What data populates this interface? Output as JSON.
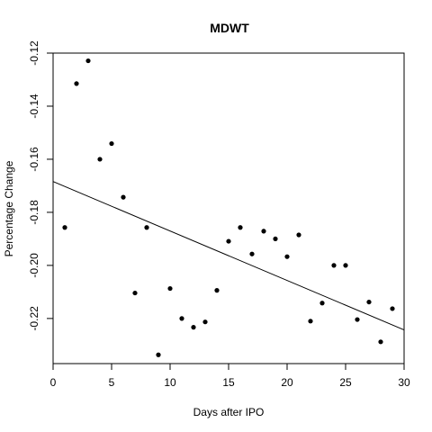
{
  "chart_data": {
    "type": "scatter",
    "title": "MDWT",
    "xlabel": "Days after IPO",
    "ylabel": "Percentage Change",
    "xlim": [
      0,
      30
    ],
    "ylim": [
      -0.237,
      -0.12
    ],
    "xticks": [
      0,
      5,
      10,
      15,
      20,
      25,
      30
    ],
    "xtick_labels": [
      "0",
      "5",
      "10",
      "15",
      "20",
      "25",
      "30"
    ],
    "yticks": [
      -0.22,
      -0.2,
      -0.18,
      -0.16,
      -0.14,
      -0.12
    ],
    "ytick_labels": [
      "-0.22",
      "-0.20",
      "-0.18",
      "-0.16",
      "-0.14",
      "-0.12"
    ],
    "grid": false,
    "points": [
      {
        "x": 1,
        "y": -0.1857
      },
      {
        "x": 2,
        "y": -0.1315
      },
      {
        "x": 3,
        "y": -0.1229
      },
      {
        "x": 4,
        "y": -0.16
      },
      {
        "x": 5,
        "y": -0.1541
      },
      {
        "x": 6,
        "y": -0.1743
      },
      {
        "x": 7,
        "y": -0.2104
      },
      {
        "x": 8,
        "y": -0.1857
      },
      {
        "x": 9,
        "y": -0.2337
      },
      {
        "x": 10,
        "y": -0.2087
      },
      {
        "x": 11,
        "y": -0.22
      },
      {
        "x": 12,
        "y": -0.2233
      },
      {
        "x": 13,
        "y": -0.2213
      },
      {
        "x": 14,
        "y": -0.2094
      },
      {
        "x": 15,
        "y": -0.1909
      },
      {
        "x": 16,
        "y": -0.1857
      },
      {
        "x": 17,
        "y": -0.1957
      },
      {
        "x": 18,
        "y": -0.1871
      },
      {
        "x": 19,
        "y": -0.19
      },
      {
        "x": 20,
        "y": -0.1967
      },
      {
        "x": 21,
        "y": -0.1885
      },
      {
        "x": 22,
        "y": -0.221
      },
      {
        "x": 23,
        "y": -0.2142
      },
      {
        "x": 24,
        "y": -0.2
      },
      {
        "x": 25,
        "y": -0.2
      },
      {
        "x": 26,
        "y": -0.2204
      },
      {
        "x": 27,
        "y": -0.2138
      },
      {
        "x": 28,
        "y": -0.2288
      },
      {
        "x": 29,
        "y": -0.2163
      }
    ],
    "regression_line": {
      "x": [
        0,
        30
      ],
      "y": [
        -0.1684,
        -0.2243
      ]
    }
  }
}
